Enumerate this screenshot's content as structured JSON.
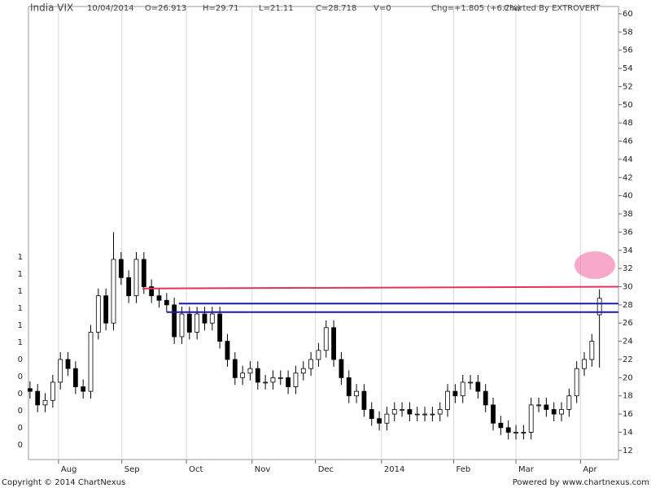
{
  "header": {
    "symbol": "India VIX",
    "date": "10/04/2014",
    "open": "O=26.913",
    "high": "H=29.71",
    "low": "L=21.11",
    "close": "C=28.718",
    "volume": "V=0",
    "change": "Chg=+1.805 (+6.7%)",
    "credit": "Charted By EXTROVERT"
  },
  "footer": {
    "copyright": "Copyright © 2014 ChartNexus",
    "powered": "Powered by www.chartnexus.com"
  },
  "left_axis_labels": [
    "1",
    "1",
    "1",
    "1",
    "1",
    "1",
    "0",
    "0",
    "0",
    "0",
    "0",
    "0"
  ],
  "chart_data": {
    "type": "candlestick",
    "open": [
      18.8,
      18.5,
      17.0,
      17.5,
      19.5,
      22.0,
      21.0,
      19.0,
      18.5,
      25.0,
      29.0,
      26.0,
      33.0,
      31.0,
      29.0,
      33.0,
      30.0,
      29.0,
      28.5,
      28.0,
      24.5,
      27.0,
      25.0,
      27.0,
      26.0,
      27.0,
      24.0,
      22.0,
      20.0,
      20.5,
      21.0,
      19.5,
      19.5,
      20.0,
      20.0,
      19.0,
      20.5,
      21.0,
      22.0,
      23.0,
      25.5,
      22.0,
      20.0,
      18.0,
      18.5,
      16.5,
      15.5,
      15.0,
      16.0,
      16.5,
      16.5,
      16.0,
      16.0,
      16.0,
      16.0,
      16.5,
      18.5,
      18.0,
      19.5,
      19.5,
      18.5,
      17.0,
      15.0,
      14.5,
      14.0,
      14.0,
      14.0,
      17.0,
      17.0,
      16.5,
      16.0,
      16.5,
      18.0,
      21.0,
      22.0,
      26.913
    ],
    "high": [
      19.6,
      19.3,
      18.3,
      20.3,
      22.8,
      22.8,
      21.8,
      19.8,
      25.8,
      29.8,
      29.8,
      36.0,
      33.8,
      31.8,
      33.8,
      33.8,
      30.8,
      29.8,
      29.3,
      28.8,
      27.8,
      27.8,
      27.8,
      27.8,
      27.8,
      27.8,
      24.8,
      22.8,
      21.3,
      21.8,
      21.8,
      20.3,
      20.8,
      20.8,
      20.8,
      21.3,
      21.8,
      22.8,
      23.8,
      26.3,
      26.3,
      22.8,
      20.8,
      19.3,
      19.3,
      17.3,
      16.3,
      16.8,
      17.3,
      17.3,
      17.3,
      16.8,
      16.8,
      16.8,
      17.3,
      19.3,
      19.3,
      20.3,
      20.3,
      20.3,
      19.3,
      17.8,
      15.8,
      15.3,
      14.8,
      14.8,
      17.8,
      17.8,
      17.8,
      17.3,
      17.3,
      18.8,
      21.8,
      22.8,
      24.8,
      29.71
    ],
    "low": [
      17.7,
      16.2,
      16.2,
      16.7,
      18.7,
      20.2,
      18.2,
      17.7,
      17.7,
      24.2,
      25.2,
      25.2,
      30.2,
      28.2,
      28.2,
      29.2,
      28.2,
      27.7,
      27.2,
      23.7,
      23.7,
      24.2,
      24.2,
      25.2,
      25.2,
      23.2,
      21.2,
      19.2,
      19.2,
      19.7,
      18.7,
      18.7,
      18.7,
      19.2,
      18.2,
      18.2,
      19.7,
      20.2,
      21.2,
      22.2,
      21.2,
      19.2,
      17.2,
      17.2,
      15.7,
      14.7,
      14.2,
      14.2,
      15.2,
      15.7,
      15.2,
      15.2,
      15.2,
      15.2,
      15.2,
      15.7,
      17.2,
      17.2,
      18.7,
      17.7,
      16.2,
      14.2,
      13.7,
      13.2,
      13.2,
      13.2,
      13.2,
      16.2,
      15.7,
      15.2,
      15.2,
      15.7,
      17.2,
      20.2,
      21.2,
      21.11
    ],
    "close": [
      18.5,
      17.0,
      17.5,
      19.5,
      22.0,
      21.0,
      19.0,
      18.5,
      25.0,
      29.0,
      26.0,
      33.0,
      31.0,
      29.0,
      33.0,
      30.0,
      29.0,
      28.5,
      28.0,
      24.5,
      27.0,
      25.0,
      27.0,
      26.0,
      27.0,
      24.0,
      22.0,
      20.0,
      20.5,
      21.0,
      19.5,
      19.5,
      20.0,
      20.0,
      19.0,
      20.5,
      21.0,
      22.0,
      23.0,
      25.5,
      22.0,
      20.0,
      18.0,
      18.5,
      16.5,
      15.5,
      15.0,
      16.0,
      16.5,
      16.5,
      16.0,
      16.0,
      16.0,
      16.0,
      16.5,
      18.5,
      18.0,
      19.5,
      19.5,
      18.5,
      17.0,
      15.0,
      14.5,
      14.0,
      14.0,
      14.0,
      17.0,
      17.0,
      16.5,
      16.0,
      16.5,
      18.0,
      21.0,
      22.0,
      24.0,
      28.718
    ],
    "xlim": [
      -0.2,
      77.5
    ],
    "xticks": [
      {
        "value": 3.75,
        "label": "Aug"
      },
      {
        "value": 12.1,
        "label": "Sep"
      },
      {
        "value": 20.6,
        "label": "Oct"
      },
      {
        "value": 29.25,
        "label": "Nov"
      },
      {
        "value": 37.6,
        "label": "Dec"
      },
      {
        "value": 46.3,
        "label": "2014"
      },
      {
        "value": 55.8,
        "label": "Feb"
      },
      {
        "value": 64,
        "label": "Mar"
      },
      {
        "value": 72.5,
        "label": "Apr"
      }
    ],
    "ylim": [
      11,
      60.8
    ],
    "yticks": [
      12,
      14,
      16,
      18,
      20,
      22,
      24,
      26,
      28,
      30,
      32,
      34,
      36,
      38,
      40,
      42,
      44,
      46,
      48,
      50,
      52,
      54,
      56,
      58,
      60
    ],
    "up_color": "#ffffff",
    "down_color": "#000000",
    "trend_lines": [
      {
        "start": 14.8,
        "end": 77.5,
        "from": 29.8,
        "to": 30.0,
        "color": "#e8315a"
      },
      {
        "start": 19.6,
        "end": 77.5,
        "from": 28.14,
        "to": 28.14,
        "color": "#1a1aa8"
      },
      {
        "start": 18.0,
        "end": 77.5,
        "from": 27.2,
        "to": 27.2,
        "color": "#1a1aa8"
      }
    ]
  }
}
